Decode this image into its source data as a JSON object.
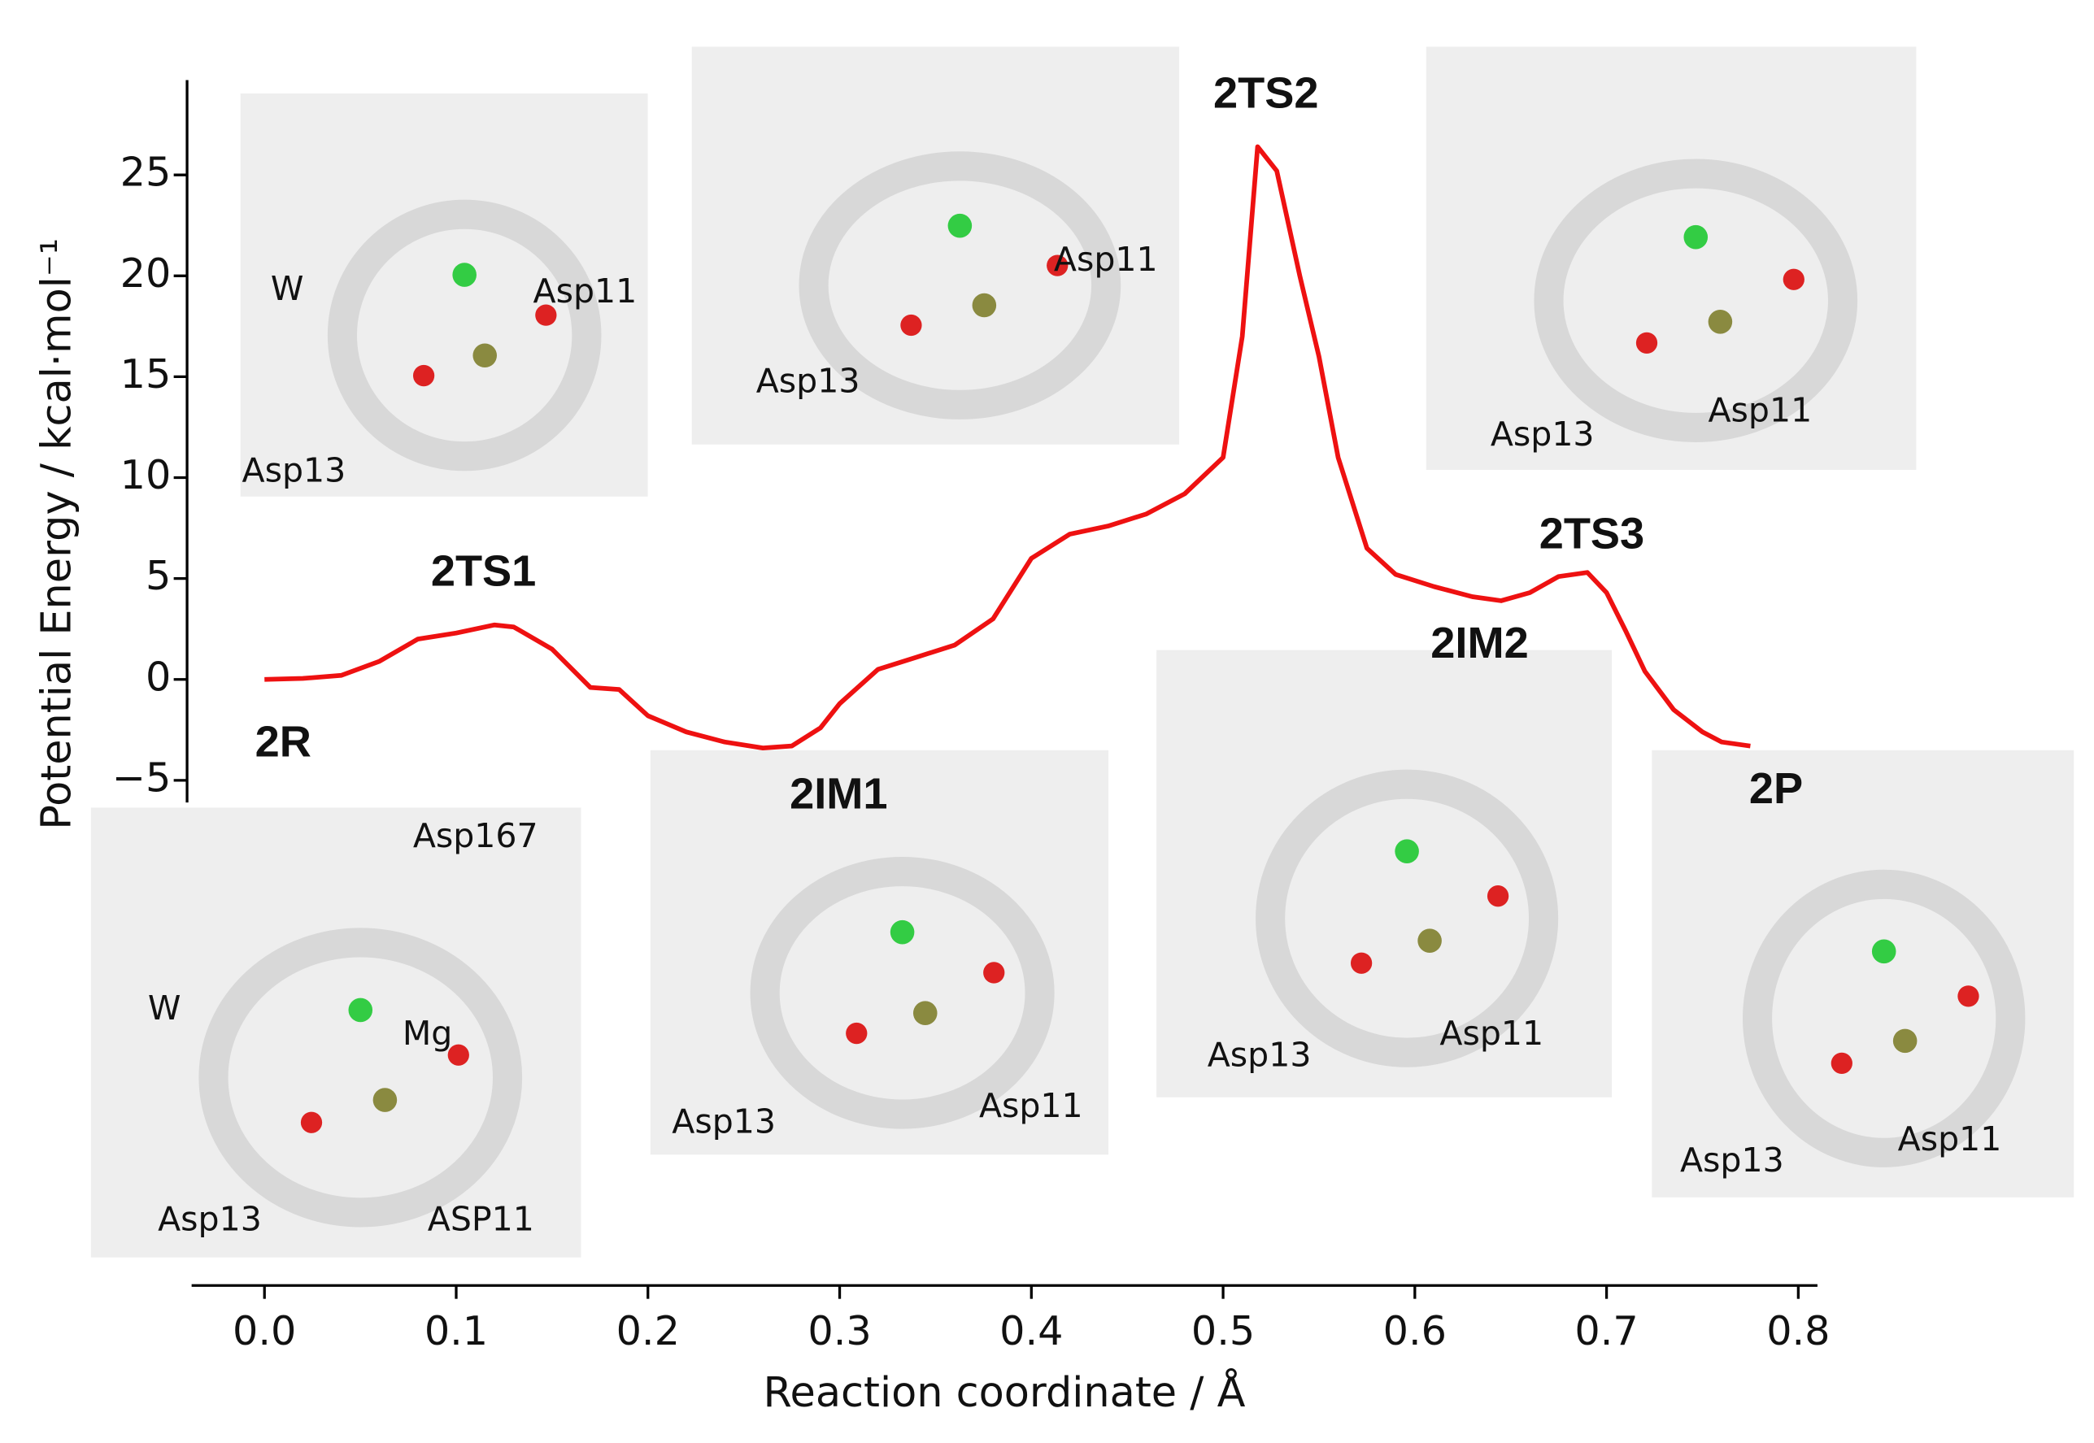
{
  "chart_data": {
    "type": "line",
    "x_label": "Reaction coordinate / Å",
    "y_label": "Potential Energy / kcal·mol⁻¹",
    "color": "#ee1111",
    "x": [
      0.0,
      0.02,
      0.04,
      0.06,
      0.08,
      0.1,
      0.12,
      0.13,
      0.15,
      0.17,
      0.185,
      0.2,
      0.22,
      0.24,
      0.26,
      0.275,
      0.29,
      0.3,
      0.32,
      0.34,
      0.36,
      0.38,
      0.4,
      0.42,
      0.44,
      0.46,
      0.48,
      0.5,
      0.51,
      0.518,
      0.528,
      0.54,
      0.55,
      0.56,
      0.575,
      0.59,
      0.61,
      0.63,
      0.645,
      0.66,
      0.675,
      0.69,
      0.7,
      0.71,
      0.72,
      0.735,
      0.75,
      0.76,
      0.775
    ],
    "values": [
      0,
      0.05,
      0.2,
      0.9,
      2.0,
      2.3,
      2.7,
      2.6,
      1.5,
      -0.4,
      -0.5,
      -1.8,
      -2.6,
      -3.1,
      -3.4,
      -3.3,
      -2.4,
      -1.2,
      0.5,
      1.1,
      1.7,
      3.0,
      6.0,
      7.2,
      7.6,
      8.2,
      9.2,
      11,
      17,
      26.4,
      25.2,
      20,
      16,
      11,
      6.5,
      5.2,
      4.6,
      4.1,
      3.9,
      4.3,
      5.1,
      5.3,
      4.3,
      2.4,
      0.4,
      -1.5,
      -2.6,
      -3.1,
      -3.3
    ],
    "xlim": [
      -0.038,
      0.81
    ],
    "ylim": [
      -6.1,
      29.7
    ],
    "xticks": [
      {
        "value": 0,
        "label": "0.0"
      },
      0.1,
      0.2,
      0.3,
      0.4,
      0.5,
      0.6,
      0.7,
      0.8
    ],
    "yticks": [
      {
        "value": -5,
        "label": "−5"
      },
      0,
      5,
      10,
      15,
      20,
      25
    ],
    "annotations": [
      "2R",
      "2TS1",
      "2TS2",
      "2TS3",
      "2IM1",
      "2IM2",
      "2P"
    ],
    "insets": [
      {
        "labels": [
          "W",
          "Asp11",
          "Asp13"
        ]
      },
      {
        "labels": [
          "Asp11",
          "Asp13"
        ]
      },
      {
        "labels": [
          "Asp13",
          "Asp11"
        ]
      },
      {
        "labels": [
          "Asp167",
          "W",
          "Mg",
          "Asp13",
          "ASP11"
        ]
      },
      {
        "labels": [
          "Asp13",
          "Asp11"
        ]
      },
      {
        "labels": [
          "Asp13",
          "Asp11"
        ]
      },
      {
        "labels": [
          "Asp13",
          "Asp11"
        ]
      }
    ]
  }
}
